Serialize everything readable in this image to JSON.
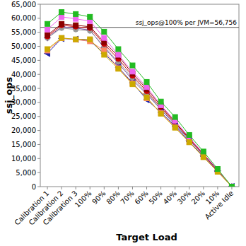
{
  "chart_data": {
    "type": "line",
    "x_label": "Target Load",
    "y_label": "ssj_ops",
    "categories": [
      "Calibration 1",
      "Calibration 2",
      "Calibration 3",
      "100%",
      "90%",
      "80%",
      "70%",
      "60%",
      "50%",
      "40%",
      "30%",
      "20%",
      "10%",
      "Active Idle"
    ],
    "ylim": [
      0,
      65000
    ],
    "yticks": [
      0,
      {
        "value": 5000,
        "label": "5,000"
      },
      {
        "value": 10000,
        "label": "10,000"
      },
      {
        "value": 15000,
        "label": "15,000"
      },
      {
        "value": 20000,
        "label": "20,000"
      },
      {
        "value": 25000,
        "label": "25,000"
      },
      {
        "value": 30000,
        "label": "30,000"
      },
      {
        "value": 35000,
        "label": "35,000"
      },
      {
        "value": 40000,
        "label": "40,000"
      },
      {
        "value": 45000,
        "label": "45,000"
      },
      {
        "value": 50000,
        "label": "50,000"
      },
      {
        "value": 55000,
        "label": "55,000"
      },
      {
        "value": 60000,
        "label": "60,000"
      },
      {
        "value": 65000,
        "label": "65,000"
      }
    ],
    "grid": false,
    "reference_line": {
      "value": 56756,
      "label": "ssj_ops@100% per JVM=56,756"
    },
    "series": [
      {
        "color": "#6a3d9a",
        "marker": "diamond",
        "values": [
          53000,
          57000,
          56500,
          55800,
          49500,
          44000,
          38000,
          33000,
          27500,
          22000,
          16500,
          11200,
          5600,
          0
        ]
      },
      {
        "color": "#999999",
        "marker": "circle",
        "values": [
          53000,
          56500,
          56000,
          55500,
          50000,
          44500,
          38800,
          33500,
          27700,
          22300,
          16700,
          11300,
          5700,
          0
        ]
      },
      {
        "color": "#cc0000",
        "marker": "circle",
        "values": [
          53500,
          57500,
          57000,
          56500,
          50800,
          45500,
          39500,
          34000,
          28200,
          22700,
          17000,
          11500,
          5800,
          0
        ]
      },
      {
        "color": "#8b0000",
        "marker": "square",
        "values": [
          54000,
          58000,
          57500,
          57000,
          51500,
          46500,
          40300,
          34800,
          28800,
          23000,
          17300,
          11700,
          5900,
          0
        ]
      },
      {
        "color": "#ee66ee",
        "marker": "square",
        "values": [
          56000,
          60500,
          59800,
          59000,
          53000,
          47000,
          41000,
          35500,
          29000,
          23500,
          17500,
          11800,
          6000,
          0
        ]
      },
      {
        "color": "#2222aa",
        "marker": "triangle-left",
        "values": [
          47500,
          52800,
          52500,
          52000,
          47500,
          42500,
          37000,
          31000,
          26500,
          21500,
          16000,
          10800,
          5500,
          0
        ]
      },
      {
        "color": "#ff8866",
        "marker": "square",
        "values": [
          48500,
          52900,
          52400,
          51800,
          48500,
          42200,
          36800,
          31500,
          26200,
          21200,
          15900,
          10600,
          5400,
          0
        ]
      },
      {
        "color": "#ccaa00",
        "marker": "square",
        "values": [
          49000,
          53000,
          52500,
          52500,
          47000,
          42000,
          36500,
          31800,
          26000,
          21000,
          15800,
          10500,
          5300,
          0
        ]
      },
      {
        "color": "#22bb22",
        "marker": "square",
        "values": [
          58000,
          62200,
          61500,
          60500,
          55200,
          49000,
          43200,
          37300,
          30300,
          24800,
          18400,
          12500,
          6300,
          0
        ]
      }
    ]
  }
}
